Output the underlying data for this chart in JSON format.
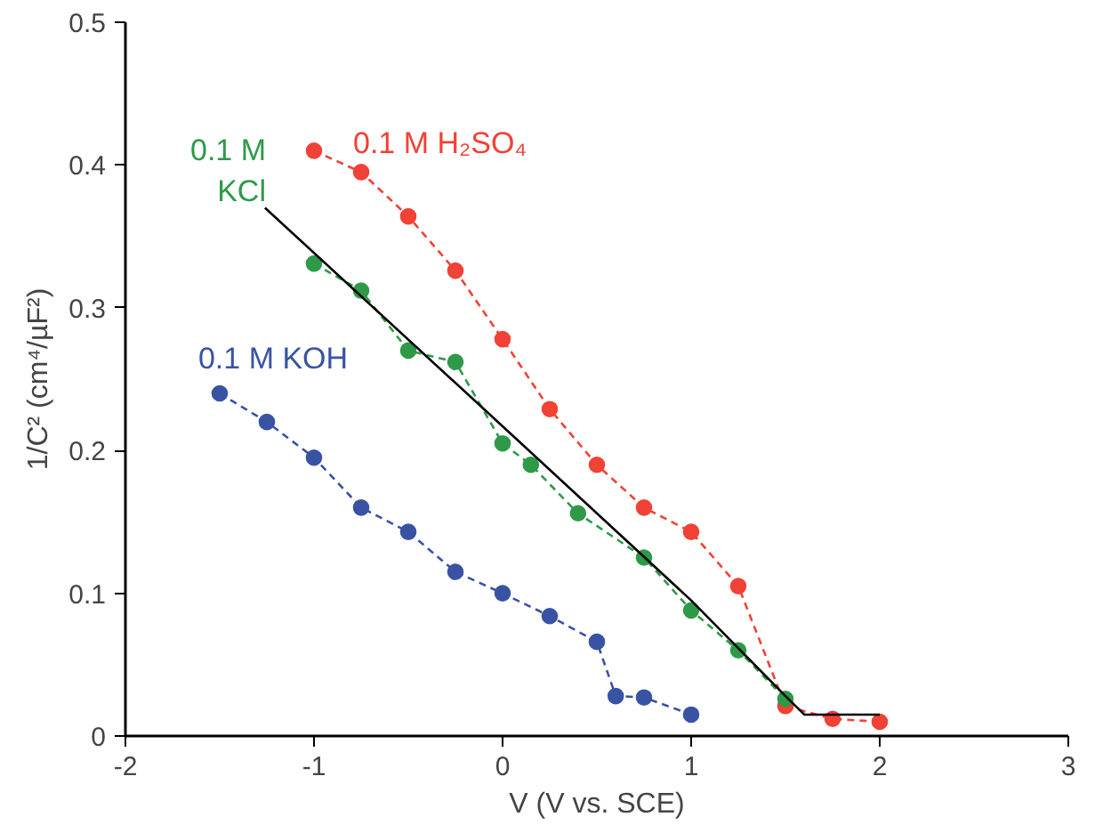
{
  "chart_data": {
    "type": "line",
    "xlabel": "V (V vs. SCE)",
    "ylabel": "1/C² (cm⁴/µF²)",
    "xlim": [
      -2,
      3
    ],
    "ylim": [
      0,
      0.5
    ],
    "xticks": [
      -2,
      -1,
      0,
      1,
      2,
      3
    ],
    "yticks": [
      0,
      0.1,
      0.2,
      0.3,
      0.4,
      0.5
    ],
    "grid": false,
    "series": [
      {
        "name": "0.1 M H₂SO₄",
        "color": "#f04236",
        "marker": "circle",
        "line_style": "dashed",
        "x": [
          -1,
          -0.75,
          -0.5,
          -0.25,
          0,
          0.25,
          0.5,
          0.75,
          1,
          1.25,
          1.5,
          1.75,
          2
        ],
        "values": [
          0.41,
          0.395,
          0.364,
          0.326,
          0.278,
          0.229,
          0.19,
          0.16,
          0.143,
          0.105,
          0.021,
          0.012,
          0.01
        ]
      },
      {
        "name": "0.1 M\nKCl",
        "color": "#2e9a48",
        "marker": "circle",
        "line_style": "dashed",
        "x": [
          -1,
          -0.75,
          -0.5,
          -0.25,
          0,
          0.15,
          0.4,
          0.75,
          1,
          1.25,
          1.5
        ],
        "values": [
          0.331,
          0.312,
          0.27,
          0.262,
          0.205,
          0.19,
          0.156,
          0.125,
          0.088,
          0.06,
          0.026
        ]
      },
      {
        "name": "0.1 M KOH",
        "color": "#3953a4",
        "marker": "circle",
        "line_style": "dashed",
        "x": [
          -1.5,
          -1.25,
          -1,
          -0.75,
          -0.5,
          -0.25,
          0,
          0.25,
          0.5,
          0.6,
          0.75,
          1
        ],
        "values": [
          0.24,
          0.22,
          0.195,
          0.16,
          0.143,
          0.115,
          0.1,
          0.084,
          0.066,
          0.028,
          0.027,
          0.015
        ]
      },
      {
        "color": "#000000",
        "marker": "none",
        "line_style": "solid",
        "x": [
          -1.26,
          0,
          1,
          1.5,
          1.6,
          2
        ],
        "values": [
          0.37,
          0.217,
          0.095,
          0.028,
          0.015,
          0.015
        ]
      }
    ]
  }
}
